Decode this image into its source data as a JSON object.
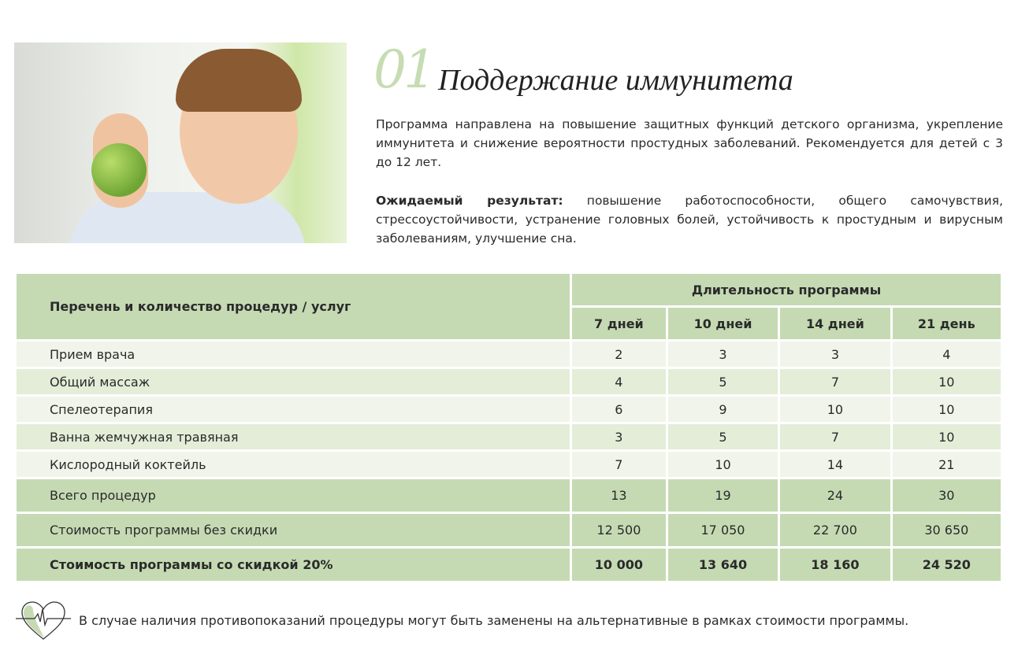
{
  "header": {
    "number": "01",
    "title": "Поддержание иммунитета"
  },
  "description": "Программа направлена на повышение защитных функций детского организма, укрепление иммунитета и снижение вероятности простудных заболеваний. Рекомендуется для детей с 3 до 12 лет.",
  "expected": {
    "label": "Ожидаемый результат:",
    "text": " повышение работоспособности, общего самочувствия, стрессоустойчивости, устранение головных болей, устойчивость к простудным и вирусным заболеваниям, улучшение сна."
  },
  "table": {
    "col_header": "Перечень и количество процедур / услуг",
    "group_header": "Длительность программы",
    "durations": [
      "7 дней",
      "10 дней",
      "14 дней",
      "21 день"
    ],
    "rows": [
      {
        "name": "Прием врача",
        "values": [
          "2",
          "3",
          "3",
          "4"
        ]
      },
      {
        "name": "Общий массаж",
        "values": [
          "4",
          "5",
          "7",
          "10"
        ]
      },
      {
        "name": "Спелеотерапия",
        "values": [
          "6",
          "9",
          "10",
          "10"
        ]
      },
      {
        "name": "Ванна жемчужная травяная",
        "values": [
          "3",
          "5",
          "7",
          "10"
        ]
      },
      {
        "name": "Кислородный коктейль",
        "values": [
          "7",
          "10",
          "14",
          "21"
        ]
      },
      {
        "name": "Всего процедур",
        "values": [
          "13",
          "19",
          "24",
          "30"
        ]
      },
      {
        "name": "Стоимость программы без скидки",
        "values": [
          "12 500",
          "17 050",
          "22 700",
          "30 650"
        ]
      },
      {
        "name": "Стоимость программы со скидкой 20%",
        "values": [
          "10 000",
          "13 640",
          "18 160",
          "24 520"
        ]
      }
    ]
  },
  "footer": {
    "icon": "heart-pulse-icon",
    "note": "В случае наличия противопоказаний процедуры могут быть заменены на альтернативные в рамках стоимости программы."
  },
  "colors": {
    "accent": "#c5dab3",
    "row_light": "#f1f4ea",
    "row_alt": "#e3edd8"
  }
}
